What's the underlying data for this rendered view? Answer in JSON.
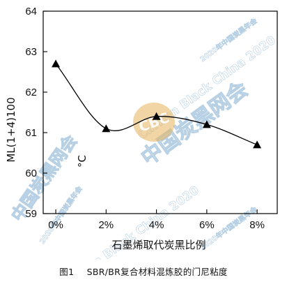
{
  "chart_data": {
    "type": "scatter",
    "xlabel": "石墨烯取代炭黑比例",
    "ylabel": "ML(1+4)100",
    "annotation": "°C",
    "x_ticks": [
      "0%",
      "2%",
      "4%",
      "6%",
      "8%"
    ],
    "y_ticks": [
      "59",
      "60",
      "61",
      "62",
      "63",
      "64"
    ],
    "xlim": [
      -0.5,
      8.8
    ],
    "ylim": [
      59,
      64
    ],
    "series": [
      {
        "x": [
          0,
          2,
          4,
          6,
          8
        ],
        "y": [
          62.7,
          61.1,
          61.4,
          61.2,
          60.7
        ],
        "marker": "triangle",
        "color": "#000000",
        "fit": "smooth-curve"
      }
    ],
    "grid": false
  },
  "caption": {
    "number": "图1",
    "text": "SBR/BR复合材料混炼胶的门尼粘度"
  },
  "watermark": {
    "lines": [
      "中国炭黑网会",
      "2020年中国炭黑年会",
      "Carbon Black China 2020"
    ],
    "badge": "CBC",
    "color": "#9fc1dc",
    "badge_color": "#e8b25a"
  }
}
